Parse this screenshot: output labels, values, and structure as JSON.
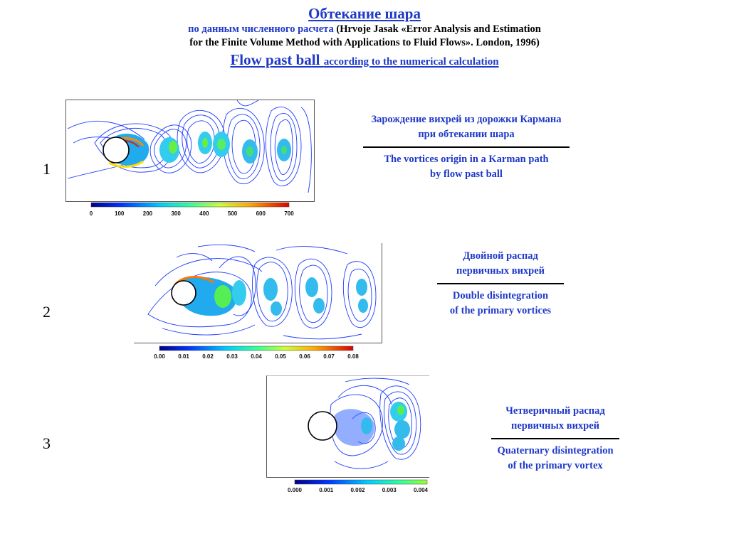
{
  "header": {
    "title_ru": "Обтекание шара",
    "line2_ru": "по данным численного расчета",
    "line2_ref": "(Hrvoje Jasak «Error Analysis and Estimation",
    "line3_ref": "for the Finite Volume Method with Applications to Fluid Flows». London, 1996)",
    "title_en": "Flow past ball",
    "title_en_small": "according to the numerical calculation"
  },
  "panels": [
    {
      "number": "1",
      "caption_ru": [
        "Зарождение вихрей из дорожки Кармана",
        "при обтекании шара"
      ],
      "caption_en": [
        "The vortices origin in a Karman path",
        "by flow past ball"
      ],
      "colorbar_ticks": [
        "0",
        "100",
        "200",
        "300",
        "400",
        "500",
        "600",
        "700"
      ]
    },
    {
      "number": "2",
      "caption_ru": [
        "Двойной распад",
        "первичных вихрей"
      ],
      "caption_en": [
        "Double disintegration",
        "of the primary vortices"
      ],
      "colorbar_ticks": [
        "0.00",
        "0.01",
        "0.02",
        "0.03",
        "0.04",
        "0.05",
        "0.06",
        "0.07",
        "0.08"
      ]
    },
    {
      "number": "3",
      "caption_ru": [
        "Четверичный распад",
        "первичных вихрей"
      ],
      "caption_en": [
        "Quaternary disintegration",
        "of the primary vortex"
      ],
      "colorbar_ticks": [
        "0.000",
        "0.001",
        "0.002",
        "0.003",
        "0.004"
      ]
    }
  ],
  "colors": {
    "accent_blue": "#1f39c8",
    "contour_blue": "#1e3cff",
    "core_cyan": "#22ddee",
    "core_green": "#44dd55"
  }
}
